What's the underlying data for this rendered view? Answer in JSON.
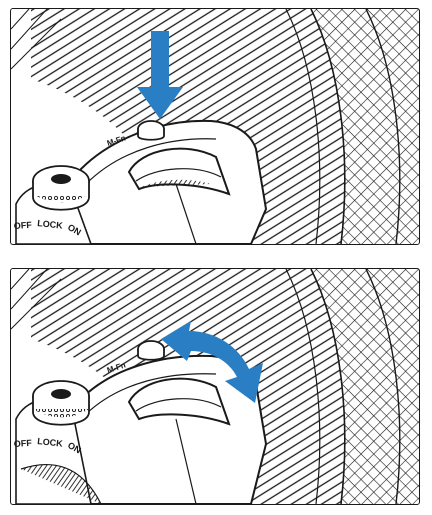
{
  "illustration": {
    "switch_labels": {
      "off": "OFF",
      "lock": "LOCK",
      "on": "ON"
    },
    "button_label": "M-Fn",
    "colors": {
      "arrow": "#2a7fc4",
      "outline": "#1a1a1a",
      "background": "#ffffff"
    },
    "icons": {
      "top_panel": "down-arrow-icon",
      "bottom_panel": "curved-double-arrow-icon"
    }
  }
}
